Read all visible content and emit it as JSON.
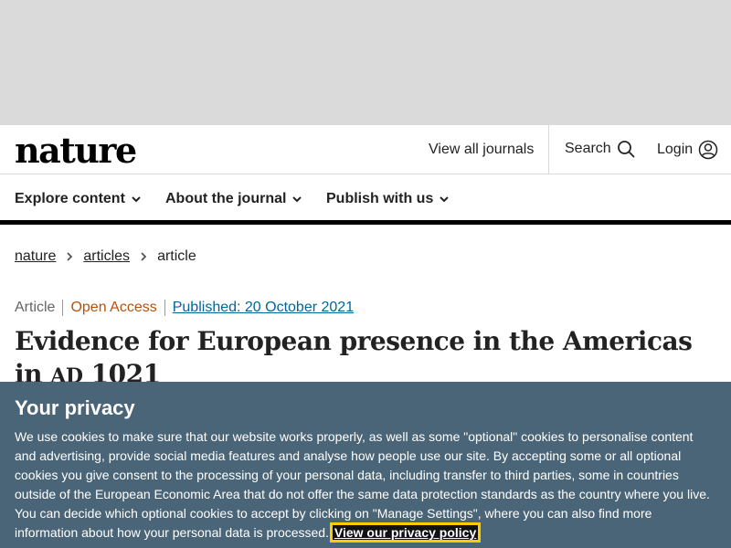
{
  "header": {
    "logo": "nature",
    "view_all_journals": "View all journals",
    "search_label": "Search",
    "login_label": "Login"
  },
  "nav": {
    "items": [
      {
        "label": "Explore content"
      },
      {
        "label": "About the journal"
      },
      {
        "label": "Publish with us"
      }
    ]
  },
  "breadcrumb": {
    "items": [
      "nature",
      "articles",
      "article"
    ]
  },
  "article": {
    "type": "Article",
    "access": "Open Access",
    "published": "Published: 20 October 2021",
    "title_main": "Evidence for European presence in the Americas in ",
    "title_ad": "AD",
    "title_year": "1021"
  },
  "privacy": {
    "heading": "Your privacy",
    "body": "We use cookies to make sure that our website works properly, as well as some \"optional\" cookies to personalise content and advertising, provide social media features and analyse how people use our site. By accepting some or all optional cookies you give consent to the processing of your personal data, including transfer to third parties, some in countries outside of the European Economic Area that do not offer the same data protection standards as the country where you live. You can decide which optional cookies to accept by clicking on \"Manage Settings\", where you can also find more information about how your personal data is processed.",
    "policy_link": "View our privacy policy"
  },
  "colors": {
    "open_access": "#b5510d",
    "published_link": "#006699",
    "privacy_bg": "#4a6577",
    "focus_outline": "#ffcc00"
  }
}
